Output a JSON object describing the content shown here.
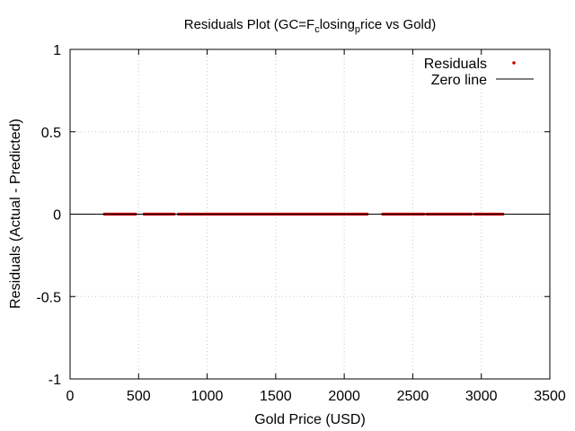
{
  "chart_data": {
    "type": "scatter",
    "title": "Residuals Plot (GC=F",
    "title_sub": "c",
    "title_mid": "losing",
    "title_sub2": "p",
    "title_end": "rice vs Gold)",
    "xlabel": "Gold Price (USD)",
    "ylabel": "Residuals (Actual - Predicted)",
    "xlim": [
      0,
      3500
    ],
    "ylim": [
      -1,
      1
    ],
    "x_ticks": [
      "0",
      "500",
      "1000",
      "1500",
      "2000",
      "2500",
      "3000",
      "3500"
    ],
    "y_ticks": [
      "1",
      "0.5",
      "0",
      "-0.5",
      "-1"
    ],
    "grid": true,
    "legend_position": "top-right",
    "series": [
      {
        "name": "Residuals",
        "color": "#cc0000",
        "marker": "dot",
        "x_range": [
          250,
          3160
        ],
        "y": 0,
        "segments": [
          [
            250,
            480
          ],
          [
            540,
            760
          ],
          [
            790,
            2010
          ],
          [
            2020,
            2170
          ],
          [
            2280,
            2580
          ],
          [
            2600,
            2930
          ],
          [
            2950,
            3160
          ]
        ]
      },
      {
        "name": "Zero line",
        "color": "#000000",
        "type": "line",
        "y": 0
      }
    ]
  }
}
